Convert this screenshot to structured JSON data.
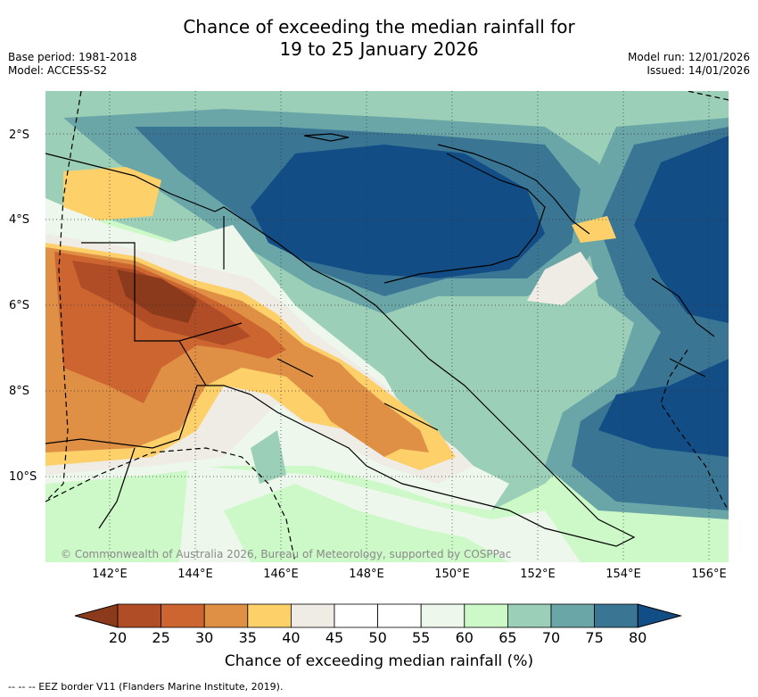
{
  "title_line1": "Chance of exceeding the median rainfall for",
  "title_line2": "19 to 25 January 2026",
  "base_period": "Base period: 1981-2018",
  "model": "Model: ACCESS-S2",
  "model_run": "Model run: 12/01/2026",
  "issued": "Issued: 14/01/2026",
  "lat_labels": [
    "2°S",
    "4°S",
    "6°S",
    "8°S",
    "10°S"
  ],
  "lon_labels": [
    "142°E",
    "144°E",
    "146°E",
    "148°E",
    "150°E",
    "152°E",
    "154°E",
    "156°E"
  ],
  "copyright": "© Commonwealth of Australia 2026, Bureau of Meteorology, supported by COSPPac",
  "colorbar": {
    "ticks": [
      "20",
      "25",
      "30",
      "35",
      "40",
      "45",
      "50",
      "55",
      "60",
      "65",
      "70",
      "75",
      "80"
    ],
    "colors": [
      "#8b3a1c",
      "#b04c26",
      "#cc6530",
      "#e09045",
      "#fdd06a",
      "#efebe5",
      "#ffffff",
      "#ffffff",
      "#eef7ec",
      "#ccf9c7",
      "#9ccfb7",
      "#6aa6a8",
      "#3a7694",
      "#124d86"
    ],
    "title": "Chance of exceeding median rainfall (%)"
  },
  "footer": "-- -- -- EEZ border V11 (Flanders Marine Institute, 2019).",
  "map_colors": {
    "c80": "#124d86",
    "c75": "#3a7694",
    "c70": "#6aa6a8",
    "c65": "#9ccfb7",
    "c60": "#ccf9c7",
    "c55": "#eef7ec",
    "c40": "#efebe5",
    "c35": "#fdd06a",
    "c30": "#e09045",
    "c25": "#cc6530",
    "c20": "#b04c26",
    "cLow": "#8b3a1c"
  }
}
